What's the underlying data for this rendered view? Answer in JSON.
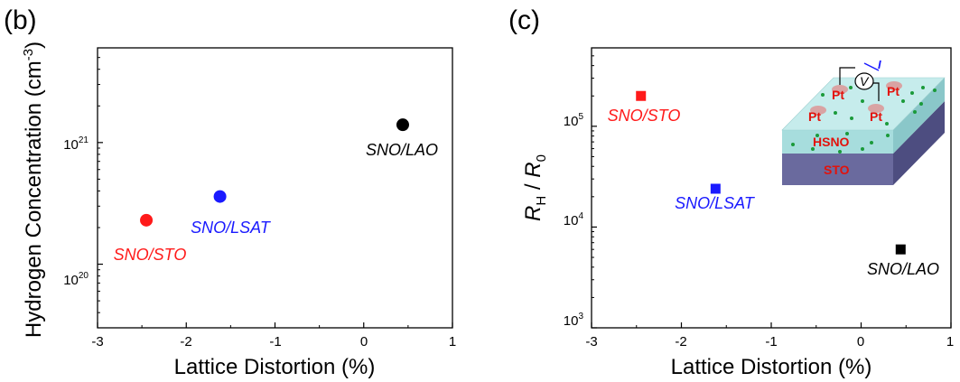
{
  "chart_data": [
    {
      "type": "scatter",
      "panel_label": "(b)",
      "xlabel": "Lattice Distortion (%)",
      "ylabel_parts": [
        "Hydrogen Concentration (cm",
        "-3",
        ")"
      ],
      "xlim": [
        -3,
        1
      ],
      "ylim": [
        3e+19,
        6e+21
      ],
      "yscale": "log",
      "x_ticks": [
        -3,
        -2,
        -1,
        0,
        1
      ],
      "x_tick_labels": [
        "-3",
        "-2",
        "-1",
        "0",
        "1"
      ],
      "y_tick_labels": [
        {
          "value": 1e+21,
          "base": "10",
          "exp": "21"
        },
        {
          "value": 1e+20,
          "base": "10",
          "exp": "20"
        }
      ],
      "series": [
        {
          "name": "SNO/STO",
          "x": -2.45,
          "y": 2.3e+20,
          "color": "#ff1a1a",
          "marker": "circle"
        },
        {
          "name": "SNO/LSAT",
          "x": -1.62,
          "y": 3.6e+20,
          "color": "#1a1aff",
          "marker": "circle"
        },
        {
          "name": "SNO/LAO",
          "x": 0.44,
          "y": 1.4e+21,
          "color": "#000000",
          "marker": "circle"
        }
      ]
    },
    {
      "type": "scatter",
      "panel_label": "(c)",
      "xlabel": "Lattice Distortion (%)",
      "ylabel_parts": [
        "R",
        "H",
        " / ",
        "R",
        "0"
      ],
      "xlim": [
        -3,
        1
      ],
      "ylim": [
        1000,
        600000
      ],
      "yscale": "log",
      "x_ticks": [
        -3,
        -2,
        -1,
        0,
        1
      ],
      "x_tick_labels": [
        "-3",
        "-2",
        "-1",
        "0",
        "1"
      ],
      "y_tick_labels": [
        {
          "value": 100000,
          "base": "10",
          "exp": "5"
        },
        {
          "value": 10000,
          "base": "10",
          "exp": "4"
        },
        {
          "value": 1000,
          "base": "10",
          "exp": "3"
        }
      ],
      "series": [
        {
          "name": "SNO/STO",
          "x": -2.45,
          "y": 200000,
          "color": "#ff1a1a",
          "marker": "square"
        },
        {
          "name": "SNO/LSAT",
          "x": -1.62,
          "y": 24000,
          "color": "#1a1aff",
          "marker": "square"
        },
        {
          "name": "SNO/LAO",
          "x": 0.44,
          "y": 6000,
          "color": "#000000",
          "marker": "square"
        }
      ],
      "inset": {
        "electrode_label": "Pt",
        "film_label": "HSNO",
        "substrate_label": "STO",
        "meter_label": "V",
        "current_label": "I"
      }
    }
  ]
}
